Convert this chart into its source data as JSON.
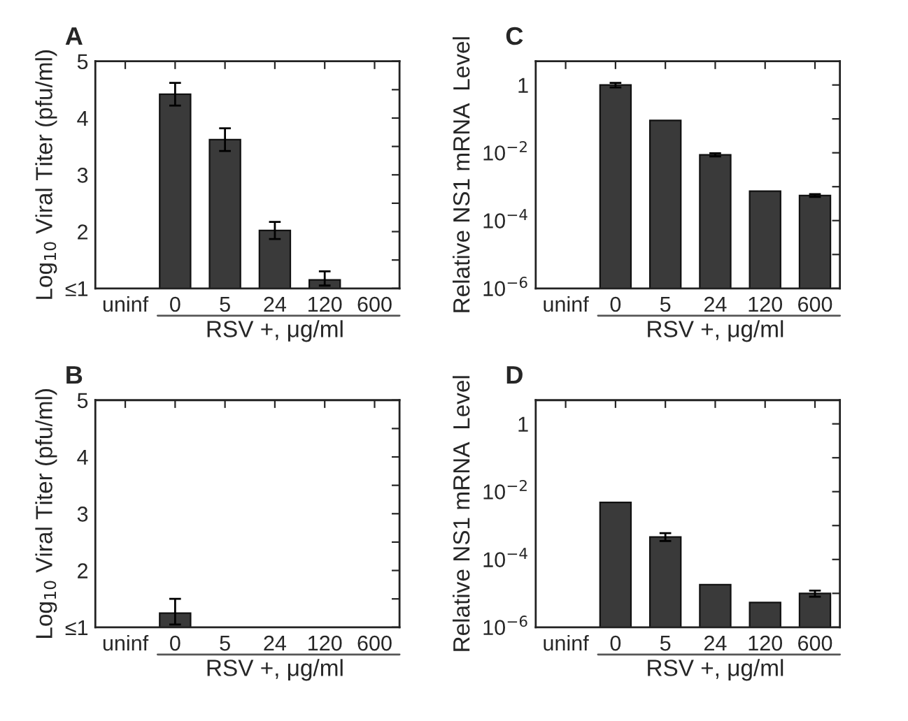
{
  "chart_data": [
    {
      "type": "bar",
      "title": "A",
      "categories": [
        "uninf",
        "0",
        "5",
        "24",
        "120",
        "600"
      ],
      "values": [
        null,
        4.42,
        3.62,
        2.02,
        1.15,
        null
      ],
      "errors": [
        null,
        0.2,
        0.2,
        0.15,
        [
          1.05,
          1.3
        ],
        null
      ],
      "color": "#3a3a3a",
      "ylabel": "Log$_{10}$ Viral Titer (pfu/ml)",
      "xlabel": "RSV +, μg/ml",
      "ylim": [
        1,
        5
      ],
      "yticks": [
        {
          "value": 1,
          "label": "≤1"
        },
        {
          "value": 1.5,
          "label": null
        },
        2,
        {
          "value": 2.5,
          "label": null
        },
        3,
        {
          "value": 3.5,
          "label": null
        },
        4,
        {
          "value": 4.5,
          "label": null
        },
        5
      ]
    },
    {
      "type": "bar",
      "title": "C",
      "categories": [
        "uninf",
        "0",
        "5",
        "24",
        "120",
        "600"
      ],
      "values": [
        null,
        1.0,
        0.09,
        0.0087,
        0.00074,
        0.00055
      ],
      "errors": [
        null,
        [
          0.85,
          1.15
        ],
        null,
        [
          0.0078,
          0.0097
        ],
        null,
        [
          0.0005,
          0.0006
        ]
      ],
      "color": "#3a3a3a",
      "ylabel": "Relative NS1 mRNA  Level",
      "xlabel": "RSV +, μg/ml",
      "log": "y",
      "ylim": [
        1e-06,
        5
      ],
      "yticks": [
        {
          "value": 1e-06,
          "label": "10$^{−6}$"
        },
        {
          "value": 1e-05,
          "label": null
        },
        {
          "value": 0.0001,
          "label": "10$^{−4}$"
        },
        {
          "value": 0.001,
          "label": null
        },
        {
          "value": 0.01,
          "label": "10$^{−2}$"
        },
        {
          "value": 0.1,
          "label": null
        },
        1
      ]
    },
    {
      "type": "bar",
      "title": "B",
      "categories": [
        "uninf",
        "0",
        "5",
        "24",
        "120",
        "600"
      ],
      "values": [
        null,
        1.25,
        null,
        null,
        null,
        null
      ],
      "errors": [
        null,
        [
          1.05,
          1.5
        ],
        null,
        null,
        null,
        null
      ],
      "color": "#3a3a3a",
      "ylabel": "Log$_{10}$ Viral Titer (pfu/ml)",
      "xlabel": "RSV +, μg/ml",
      "ylim": [
        1,
        5
      ],
      "yticks": [
        {
          "value": 1,
          "label": "≤1"
        },
        {
          "value": 1.5,
          "label": null
        },
        2,
        {
          "value": 2.5,
          "label": null
        },
        3,
        {
          "value": 3.5,
          "label": null
        },
        4,
        {
          "value": 4.5,
          "label": null
        },
        5
      ]
    },
    {
      "type": "bar",
      "title": "D",
      "categories": [
        "uninf",
        "0",
        "5",
        "24",
        "120",
        "600"
      ],
      "values": [
        null,
        0.0048,
        0.00046,
        1.8e-05,
        5.4e-06,
        1e-05
      ],
      "errors": [
        null,
        null,
        [
          0.00035,
          0.0006
        ],
        null,
        null,
        [
          8e-06,
          1.2e-05
        ]
      ],
      "color": "#3a3a3a",
      "ylabel": "Relative NS1 mRNA  Level",
      "xlabel": "RSV +, μg/ml",
      "log": "y",
      "ylim": [
        1e-06,
        5
      ],
      "yticks": [
        {
          "value": 1e-06,
          "label": "10$^{−6}$"
        },
        {
          "value": 1e-05,
          "label": null
        },
        {
          "value": 0.0001,
          "label": "10$^{−4}$"
        },
        {
          "value": 0.001,
          "label": null
        },
        {
          "value": 0.01,
          "label": "10$^{−2}$"
        },
        {
          "value": 0.1,
          "label": null
        },
        1
      ]
    }
  ]
}
